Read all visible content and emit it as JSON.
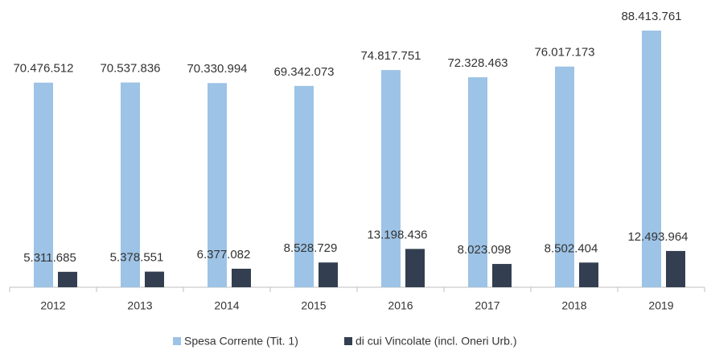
{
  "chart_data": {
    "type": "bar",
    "categories": [
      "2012",
      "2013",
      "2014",
      "2015",
      "2016",
      "2017",
      "2018",
      "2019"
    ],
    "series": [
      {
        "name": "Spesa Corrente (Tit. 1)",
        "color": "#9dc3e6",
        "values": [
          70476512,
          70537836,
          70330994,
          69342073,
          74817751,
          72328463,
          76017173,
          88413761
        ],
        "value_labels": [
          "70.476.512",
          "70.537.836",
          "70.330.994",
          "69.342.073",
          "74.817.751",
          "72.328.463",
          "76.017.173",
          "88.413.761"
        ]
      },
      {
        "name": "di cui Vincolate (incl. Oneri Urb.)",
        "color": "#333f50",
        "values": [
          5311685,
          5378551,
          6377082,
          8528729,
          13198436,
          8023098,
          8502404,
          12493964
        ],
        "value_labels": [
          "5.311.685",
          "5.378.551",
          "6.377.082",
          "8.528.729",
          "13.198.436",
          "8.023.098",
          "8.502.404",
          "12.493.964"
        ]
      }
    ],
    "legend": "bottom"
  }
}
